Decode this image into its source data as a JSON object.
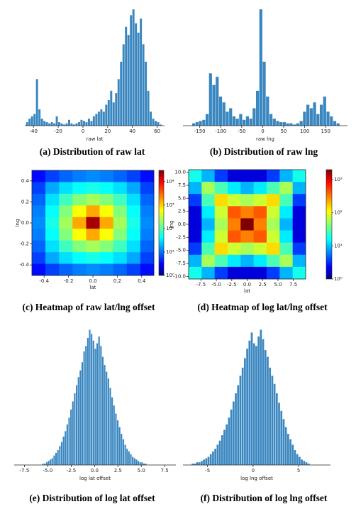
{
  "chart_data": [
    {
      "type": "histogram",
      "title": "(a) Distribution of raw lat",
      "xlabel": "raw lat",
      "color": "#3a87c0",
      "bins": [
        -46,
        -44,
        -42,
        -40,
        -38,
        -36,
        -34,
        -32,
        -30,
        -28,
        -26,
        -24,
        -22,
        -20,
        -18,
        -16,
        -14,
        -12,
        -10,
        -8,
        -6,
        -4,
        -2,
        0,
        2,
        4,
        6,
        8,
        10,
        12,
        14,
        16,
        18,
        20,
        22,
        24,
        26,
        28,
        30,
        32,
        34,
        36,
        38,
        40,
        42,
        44,
        46,
        48,
        50,
        52,
        54,
        56,
        58,
        60,
        62,
        64
      ],
      "counts": [
        3,
        6,
        8,
        10,
        40,
        14,
        6,
        4,
        3,
        2,
        3,
        2,
        8,
        3,
        2,
        1,
        2,
        5,
        2,
        1,
        2,
        3,
        5,
        4,
        3,
        6,
        4,
        8,
        10,
        12,
        14,
        12,
        18,
        22,
        30,
        20,
        28,
        40,
        55,
        70,
        85,
        78,
        95,
        100,
        88,
        80,
        92,
        70,
        55,
        30,
        12,
        6,
        4,
        3,
        1
      ],
      "xlim": [
        -47,
        66
      ],
      "ylim": [
        0,
        105
      ],
      "xticks": [
        -40,
        -20,
        0,
        20,
        40,
        60
      ]
    },
    {
      "type": "histogram",
      "title": "(b) Distribution of raw lng",
      "xlabel": "raw lng",
      "color": "#3a87c0",
      "bins": [
        -168,
        -160,
        -152,
        -144,
        -136,
        -128,
        -120,
        -112,
        -104,
        -96,
        -88,
        -80,
        -72,
        -64,
        -56,
        -48,
        -40,
        -32,
        -24,
        -16,
        -8,
        0,
        8,
        16,
        24,
        32,
        40,
        48,
        56,
        64,
        72,
        80,
        88,
        96,
        104,
        112,
        120,
        128,
        136,
        144,
        152,
        160,
        168,
        176,
        184
      ],
      "counts": [
        2,
        3,
        4,
        5,
        10,
        45,
        35,
        42,
        25,
        20,
        12,
        15,
        8,
        6,
        10,
        5,
        8,
        6,
        15,
        30,
        100,
        55,
        25,
        10,
        6,
        4,
        3,
        3,
        2,
        2,
        1,
        2,
        4,
        12,
        18,
        15,
        20,
        10,
        18,
        25,
        12,
        8,
        4,
        2
      ],
      "xlim": [
        -190,
        202
      ],
      "ylim": [
        0,
        105
      ],
      "xticks": [
        -150,
        -100,
        -50,
        0,
        50,
        100,
        150
      ]
    },
    {
      "type": "heatmap",
      "title": "(c) Heatmap of raw lat/lng offset",
      "xlabel": "lat",
      "ylabel": "lng",
      "log_color": true,
      "xlim": [
        -0.5,
        0.5
      ],
      "ylim": [
        -0.5,
        0.5
      ],
      "xticks": [
        -0.4,
        -0.2,
        {
          "value": 0,
          "label": "0.0"
        },
        0.2,
        0.4
      ],
      "yticks": [
        -0.4,
        -0.2,
        {
          "value": 0,
          "label": "0.0"
        },
        0.2,
        0.4
      ],
      "z": [
        [
          4,
          7,
          10,
          13,
          15,
          13,
          10,
          7,
          4
        ],
        [
          7,
          20,
          35,
          50,
          60,
          50,
          35,
          20,
          7
        ],
        [
          10,
          35,
          90,
          180,
          250,
          180,
          90,
          35,
          10
        ],
        [
          13,
          50,
          180,
          600,
          1500,
          600,
          180,
          50,
          13
        ],
        [
          15,
          60,
          250,
          1500,
          20000,
          1500,
          250,
          60,
          15
        ],
        [
          13,
          50,
          180,
          600,
          1500,
          600,
          180,
          50,
          13
        ],
        [
          10,
          35,
          90,
          180,
          250,
          180,
          90,
          35,
          10
        ],
        [
          7,
          20,
          35,
          50,
          60,
          50,
          35,
          20,
          7
        ],
        [
          4,
          7,
          10,
          13,
          15,
          13,
          10,
          7,
          4
        ]
      ],
      "clim": [
        1,
        30000
      ],
      "cticks": [
        {
          "value": 1,
          "label": "10⁰"
        },
        {
          "value": 10,
          "label": "10¹"
        },
        {
          "value": 100,
          "label": "10²"
        },
        {
          "value": 1000,
          "label": "10³"
        },
        {
          "value": 10000,
          "label": "10⁴"
        }
      ]
    },
    {
      "type": "heatmap",
      "title": "(d) Heatmap of log lat/lng offset",
      "xlabel": "lat",
      "ylabel": "lng",
      "log_color": true,
      "xlim": [
        -9.5,
        9.5
      ],
      "ylim": [
        -10.5,
        10.5
      ],
      "xticks": [
        -7.5,
        {
          "value": -5,
          "label": "-5.0"
        },
        -2.5,
        {
          "value": 0,
          "label": "0.0"
        },
        2.5,
        {
          "value": 5,
          "label": "5.0"
        },
        7.5
      ],
      "yticks": [
        {
          "value": -10,
          "label": "-10.0"
        },
        -7.5,
        {
          "value": -5,
          "label": "-5.0"
        },
        -2.5,
        {
          "value": 0,
          "label": "0.0"
        },
        2.5,
        {
          "value": 5,
          "label": "5.0"
        },
        7.5,
        {
          "value": 10,
          "label": "10.0"
        }
      ],
      "z": [
        [
          20,
          10,
          4,
          2,
          2,
          2,
          4,
          10,
          20
        ],
        [
          10,
          60,
          30,
          15,
          10,
          15,
          30,
          60,
          10
        ],
        [
          4,
          30,
          150,
          80,
          60,
          80,
          150,
          30,
          4
        ],
        [
          2,
          15,
          80,
          400,
          300,
          400,
          80,
          15,
          2
        ],
        [
          2,
          10,
          60,
          300,
          2000,
          300,
          60,
          10,
          2
        ],
        [
          2,
          15,
          80,
          400,
          300,
          400,
          80,
          15,
          2
        ],
        [
          4,
          30,
          150,
          80,
          60,
          80,
          150,
          30,
          4
        ],
        [
          10,
          60,
          30,
          15,
          10,
          15,
          30,
          60,
          10
        ],
        [
          20,
          10,
          4,
          2,
          2,
          2,
          4,
          10,
          20
        ]
      ],
      "clim": [
        1,
        2000
      ],
      "cticks": [
        {
          "value": 1,
          "label": "10⁰"
        },
        {
          "value": 10,
          "label": "10¹"
        },
        {
          "value": 100,
          "label": "10²"
        },
        {
          "value": 1000,
          "label": "10³"
        }
      ]
    },
    {
      "type": "histogram",
      "title": "(e) Distribution of log lat offset",
      "xlabel": "log lat offset",
      "color": "#3a87c0",
      "bins": [
        -5.6,
        -5.4,
        -5.2,
        -5,
        -4.8,
        -4.6,
        -4.4,
        -4.2,
        -4,
        -3.8,
        -3.6,
        -3.4,
        -3.2,
        -3,
        -2.8,
        -2.6,
        -2.4,
        -2.2,
        -2,
        -1.8,
        -1.6,
        -1.4,
        -1.2,
        -1,
        -0.8,
        -0.6,
        -0.4,
        -0.2,
        0,
        0.2,
        0.4,
        0.6,
        0.8,
        1,
        1.2,
        1.4,
        1.6,
        1.8,
        2,
        2.2,
        2.4,
        2.6,
        2.8,
        3,
        3.2,
        3.4,
        3.6,
        3.8,
        4,
        4.2,
        4.4,
        4.6,
        4.8,
        5,
        5.2,
        5.4,
        5.6
      ],
      "counts": [
        1,
        1,
        2,
        3,
        4,
        5,
        7,
        9,
        11,
        14,
        17,
        21,
        25,
        30,
        35,
        41,
        47,
        53,
        59,
        65,
        70,
        76,
        84,
        88,
        94,
        100,
        97,
        92,
        86,
        90,
        95,
        88,
        80,
        74,
        69,
        64,
        57,
        50,
        44,
        38,
        33,
        28,
        23,
        19,
        15,
        12,
        10,
        8,
        6,
        5,
        4,
        3,
        2,
        2,
        1,
        1
      ],
      "xlim": [
        -8.6,
        8.7
      ],
      "ylim": [
        0,
        105
      ],
      "xticks": [
        -7.5,
        {
          "value": -5,
          "label": "-5.0"
        },
        -2.5,
        {
          "value": 0,
          "label": "0.0"
        },
        2.5,
        {
          "value": 5,
          "label": "5.0"
        },
        7.5
      ]
    },
    {
      "type": "histogram",
      "title": "(f) Distribution of log lng offset",
      "xlabel": "log lng offset",
      "color": "#3a87c0",
      "bins": [
        -6.75,
        -6.5,
        -6.25,
        -6,
        -5.75,
        -5.5,
        -5.25,
        -5,
        -4.75,
        -4.5,
        -4.25,
        -4,
        -3.75,
        -3.5,
        -3.25,
        -3,
        -2.75,
        -2.5,
        -2.25,
        -2,
        -1.75,
        -1.5,
        -1.25,
        -1,
        -0.75,
        -0.5,
        -0.25,
        0,
        0.25,
        0.5,
        0.75,
        1,
        1.25,
        1.5,
        1.75,
        2,
        2.25,
        2.5,
        2.75,
        3,
        3.25,
        3.5,
        3.75,
        4,
        4.25,
        4.5,
        4.75,
        5,
        5.25,
        5.5,
        5.75,
        6,
        6.25
      ],
      "counts": [
        1,
        1,
        2,
        2,
        3,
        4,
        5,
        6,
        8,
        10,
        12,
        15,
        18,
        22,
        26,
        30,
        35,
        41,
        47,
        53,
        59,
        66,
        72,
        79,
        86,
        92,
        98,
        90,
        88,
        95,
        100,
        93,
        85,
        80,
        72,
        66,
        60,
        53,
        46,
        40,
        34,
        28,
        23,
        19,
        15,
        11,
        8,
        6,
        4,
        3,
        2,
        1
      ],
      "xlim": [
        -7.7,
        8.5
      ],
      "ylim": [
        0,
        105
      ],
      "xticks": [
        -5,
        0,
        5
      ]
    }
  ]
}
